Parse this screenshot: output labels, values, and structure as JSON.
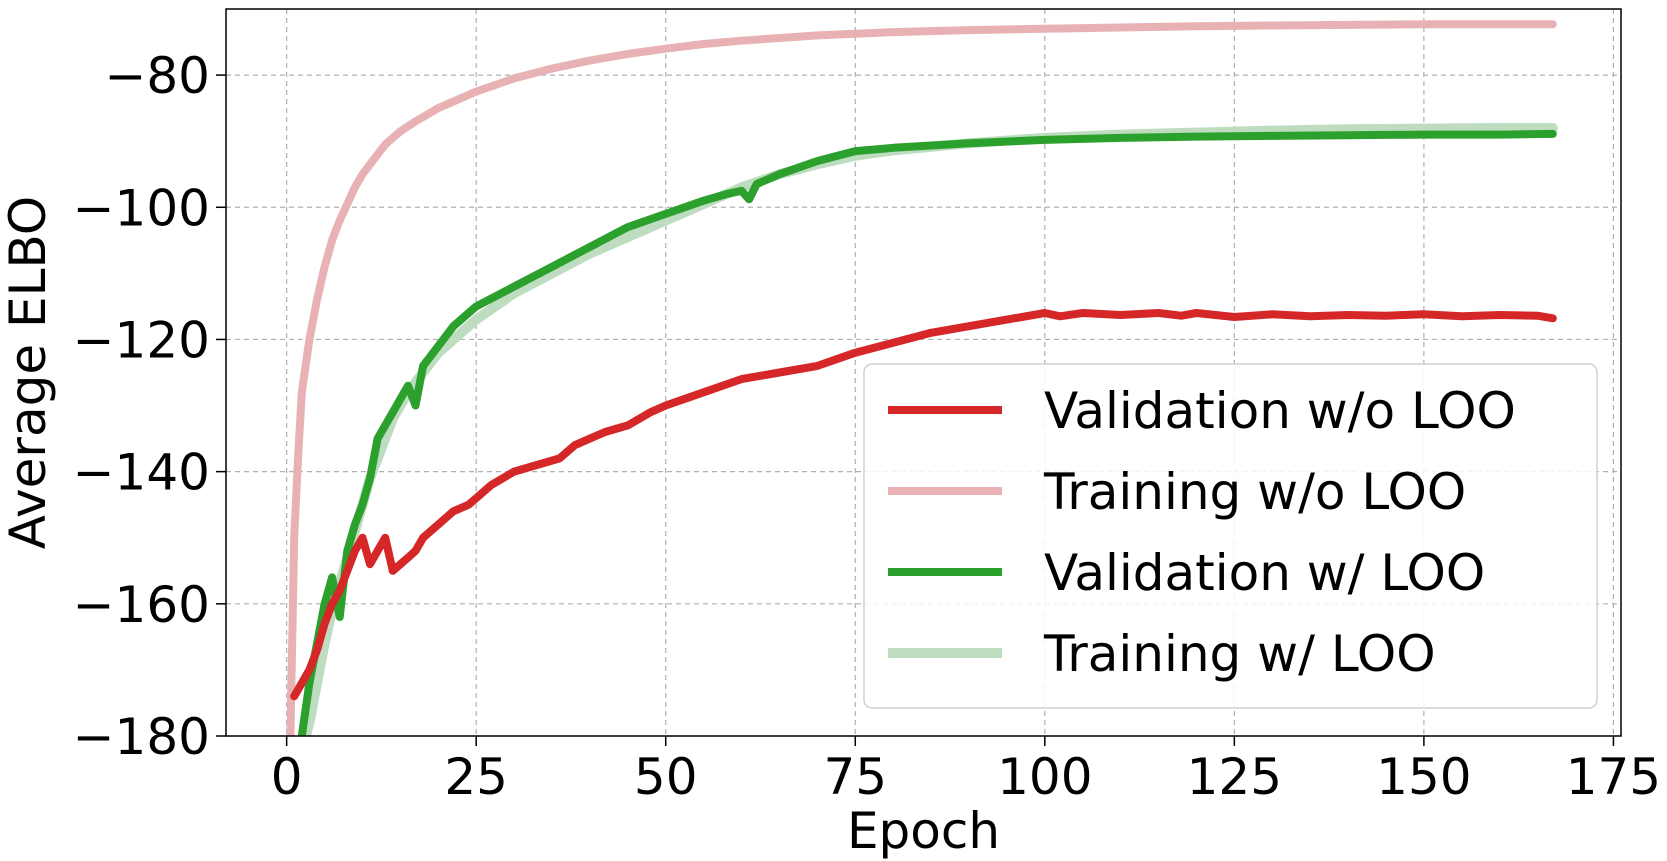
{
  "chart_data": {
    "type": "line",
    "xlabel": "Epoch",
    "ylabel": "Average ELBO",
    "xlim": [
      -8,
      176
    ],
    "ylim": [
      -180,
      -70
    ],
    "xticks": [
      0,
      25,
      50,
      75,
      100,
      125,
      150,
      175
    ],
    "yticks": [
      -180,
      -160,
      -140,
      -120,
      -100,
      -80
    ],
    "xtick_labels": [
      "0",
      "25",
      "50",
      "75",
      "100",
      "125",
      "150",
      "175"
    ],
    "ytick_labels": [
      "−180",
      "−160",
      "−140",
      "−120",
      "−100",
      "−80"
    ],
    "grid": true,
    "legend_position": "lower-right",
    "series": [
      {
        "name": "Validation w/o LOO",
        "color": "#d62728",
        "x": [
          1,
          2,
          3,
          4,
          5,
          6,
          7,
          8,
          9,
          10,
          11,
          12,
          13,
          14,
          15,
          16,
          17,
          18,
          20,
          22,
          24,
          25,
          27,
          30,
          33,
          36,
          38,
          40,
          42,
          45,
          48,
          50,
          55,
          60,
          65,
          70,
          75,
          80,
          85,
          90,
          95,
          100,
          102,
          105,
          110,
          115,
          118,
          120,
          125,
          130,
          135,
          140,
          145,
          150,
          155,
          160,
          165,
          167
        ],
        "y": [
          -174,
          -172,
          -170,
          -167,
          -163,
          -160,
          -158,
          -155,
          -152,
          -150,
          -154,
          -152,
          -150,
          -155,
          -154,
          -153,
          -152,
          -150,
          -148,
          -146,
          -145,
          -144,
          -142,
          -140,
          -139,
          -138,
          -136,
          -135,
          -134,
          -133,
          -131,
          -130,
          -128,
          -126,
          -125,
          -124,
          -122,
          -120.5,
          -119,
          -118,
          -117,
          -116,
          -116.5,
          -116,
          -116.3,
          -116,
          -116.4,
          -116,
          -116.6,
          -116.2,
          -116.5,
          -116.3,
          -116.4,
          -116.2,
          -116.5,
          -116.3,
          -116.4,
          -116.8
        ]
      },
      {
        "name": "Training w/o LOO",
        "color": "#e8b2b5",
        "x": [
          0.5,
          1,
          1.5,
          2,
          3,
          4,
          5,
          6,
          7,
          8,
          9,
          10,
          11,
          12,
          13,
          14,
          15,
          17,
          20,
          23,
          25,
          30,
          35,
          40,
          45,
          50,
          55,
          60,
          70,
          80,
          90,
          100,
          110,
          120,
          130,
          140,
          150,
          160,
          167
        ],
        "y": [
          -180,
          -150,
          -138,
          -128,
          -120,
          -114,
          -109,
          -105,
          -102,
          -99.5,
          -97,
          -95,
          -93.5,
          -92,
          -90.5,
          -89.5,
          -88.5,
          -87,
          -85,
          -83.5,
          -82.5,
          -80.5,
          -79,
          -77.8,
          -76.8,
          -76,
          -75.3,
          -74.8,
          -74,
          -73.5,
          -73.2,
          -73,
          -72.8,
          -72.6,
          -72.5,
          -72.4,
          -72.3,
          -72.3,
          -72.3
        ]
      },
      {
        "name": "Validation w/ LOO",
        "color": "#2ca02c",
        "x": [
          2,
          3,
          4,
          5,
          6,
          7,
          8,
          9,
          10,
          11,
          12,
          13,
          14,
          15,
          16,
          17,
          18,
          20,
          22,
          25,
          30,
          35,
          40,
          45,
          50,
          55,
          58,
          60,
          61,
          62,
          65,
          70,
          75,
          80,
          90,
          100,
          110,
          120,
          130,
          140,
          150,
          160,
          167
        ],
        "y": [
          -180,
          -172,
          -166,
          -160,
          -156,
          -162,
          -152,
          -148,
          -145,
          -141,
          -135,
          -133,
          -131,
          -129,
          -127,
          -130,
          -124,
          -121,
          -118,
          -115,
          -112,
          -109,
          -106,
          -103,
          -101,
          -99,
          -98,
          -97.5,
          -98.8,
          -96.5,
          -95,
          -93,
          -91.5,
          -91,
          -90.3,
          -89.8,
          -89.5,
          -89.3,
          -89.2,
          -89.1,
          -89,
          -89,
          -88.9
        ]
      },
      {
        "name": "Training w/ LOO",
        "color": "#bddcc0",
        "x": [
          2,
          3,
          4,
          5,
          6,
          7,
          8,
          9,
          10,
          11,
          12,
          13,
          14,
          15,
          16,
          18,
          20,
          22,
          25,
          30,
          35,
          40,
          45,
          50,
          55,
          60,
          65,
          70,
          75,
          80,
          90,
          100,
          110,
          120,
          130,
          140,
          150,
          160,
          167
        ],
        "y": [
          -182,
          -178,
          -172,
          -166,
          -161,
          -157,
          -153,
          -149,
          -145,
          -141,
          -138,
          -135,
          -132,
          -130,
          -128,
          -125,
          -122,
          -120,
          -117,
          -113,
          -110,
          -107,
          -104.5,
          -102,
          -99.5,
          -97,
          -95,
          -93.5,
          -92.2,
          -91.4,
          -90.3,
          -89.5,
          -89,
          -88.7,
          -88.4,
          -88.2,
          -88.1,
          -88,
          -88
        ]
      }
    ]
  }
}
